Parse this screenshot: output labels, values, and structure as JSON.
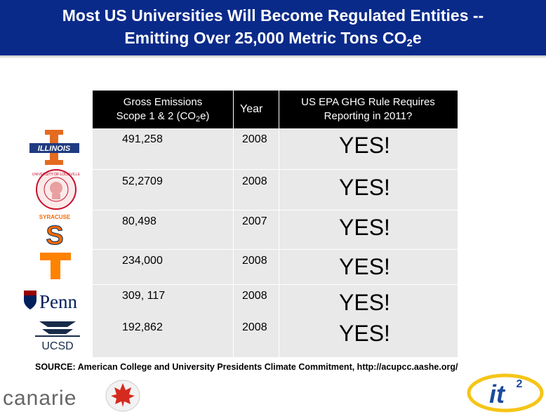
{
  "title": {
    "line1": "Most US Universities Will Become Regulated Entities --",
    "line2_prefix": "Emitting Over 25,000 Metric Tons CO",
    "line2_sub": "2",
    "line2_suffix": "e"
  },
  "table": {
    "header_emissions_line1": "Gross Emissions",
    "header_emissions_line2_prefix": "Scope 1 & 2 (CO",
    "header_emissions_line2_sub": "2",
    "header_emissions_line2_suffix": "e)",
    "header_year": "Year",
    "header_rule_line1": "US EPA GHG Rule Requires",
    "header_rule_line2": "Reporting in 2011?",
    "rows": [
      {
        "logo": "illinois-logo",
        "emissions": "491,258",
        "year": "2008",
        "answer": "YES!"
      },
      {
        "logo": "louisville-seal",
        "emissions": "52,2709",
        "year": "2008",
        "answer": "YES!"
      },
      {
        "logo": "syracuse-logo",
        "emissions": "80,498",
        "year": "2007",
        "answer": "YES!"
      },
      {
        "logo": "tennessee-logo",
        "emissions": "234,000",
        "year": "2008",
        "answer": "YES!"
      },
      {
        "logo": "penn-logo",
        "emissions": "309, 117",
        "year": "2008",
        "answer": "YES!"
      },
      {
        "logo": "ucsd-logo",
        "emissions": "192,862",
        "year": "2008",
        "answer": "YES!"
      }
    ]
  },
  "logos": {
    "illinois_text": "ILLINOIS",
    "louisville_text": "UNIVERSITY OF LOUISVILLE",
    "syracuse_text": "SYRACUSE",
    "syracuse_letter": "S",
    "tennessee_letter": "T",
    "penn_text": "Penn",
    "ucsd_text": "UCSD",
    "canarie_text": "canarie",
    "it2_text": "it"
  },
  "source": "SOURCE:  American College and University Presidents Climate Commitment, http://acupcc.aashe.org/",
  "colors": {
    "title_bg": "#0a2a8a",
    "illinois_orange": "#e46b1f",
    "illinois_blue": "#1f3a80",
    "syracuse_orange": "#f76900",
    "tennessee_orange": "#ff8200",
    "penn_blue": "#011f5b",
    "penn_red": "#990000",
    "ucsd_navy": "#182b49",
    "canarie_gray": "#666666",
    "it2_blue": "#1a4b9c",
    "it2_yellow": "#f5c518"
  }
}
